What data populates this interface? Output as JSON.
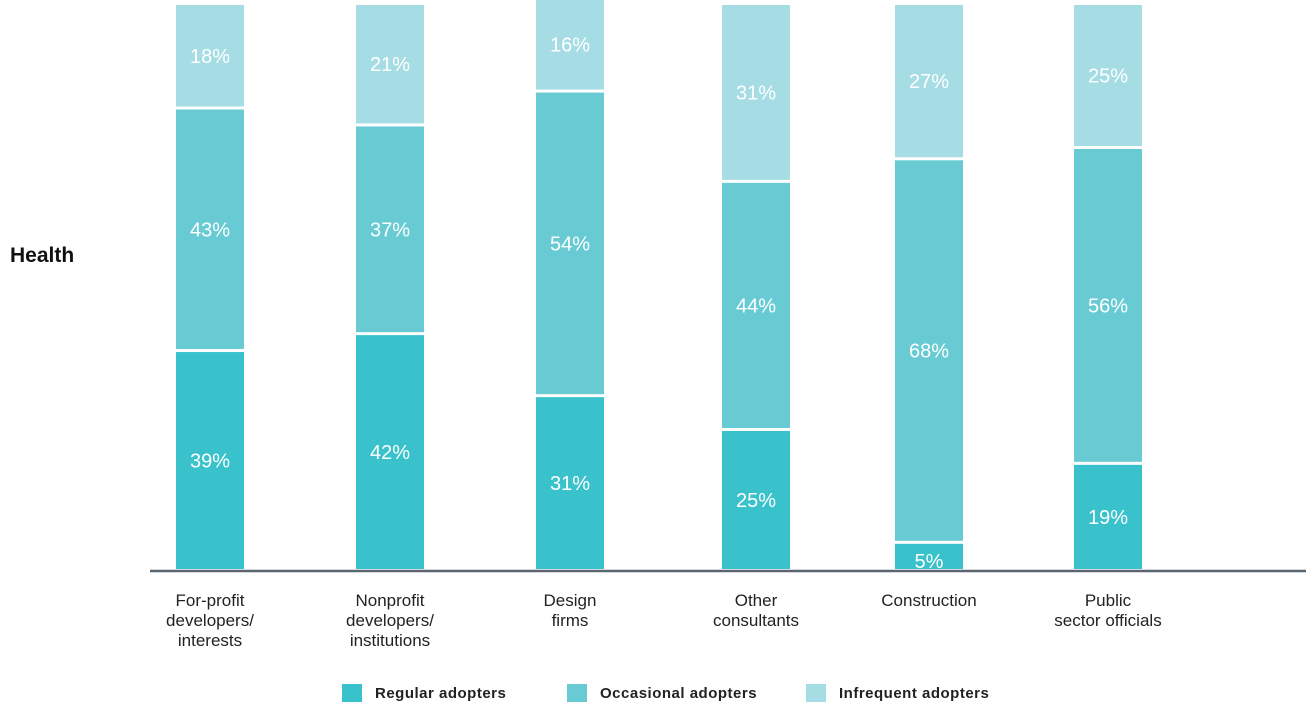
{
  "chart_data": {
    "type": "bar",
    "stacked": true,
    "row_label": "Health",
    "categories": [
      [
        "For-profit",
        "developers/",
        "interests"
      ],
      [
        "Nonprofit",
        "developers/",
        "institutions"
      ],
      [
        "Design",
        "firms"
      ],
      [
        "Other",
        "consultants"
      ],
      [
        "Construction"
      ],
      [
        "Public",
        "sector officials"
      ]
    ],
    "series": [
      {
        "name": "Regular adopters",
        "color": "#3ac2cc",
        "values": [
          39,
          42,
          31,
          25,
          5,
          19
        ]
      },
      {
        "name": "Occasional adopters",
        "color": "#68cbd4",
        "values": [
          43,
          37,
          54,
          44,
          68,
          56
        ]
      },
      {
        "name": "Infrequent adopters",
        "color": "#a6dde5",
        "values": [
          18,
          21,
          16,
          31,
          27,
          25
        ]
      }
    ],
    "value_suffix": "%",
    "ylim": [
      0,
      100
    ],
    "grid": false,
    "legend_position": "bottom"
  }
}
